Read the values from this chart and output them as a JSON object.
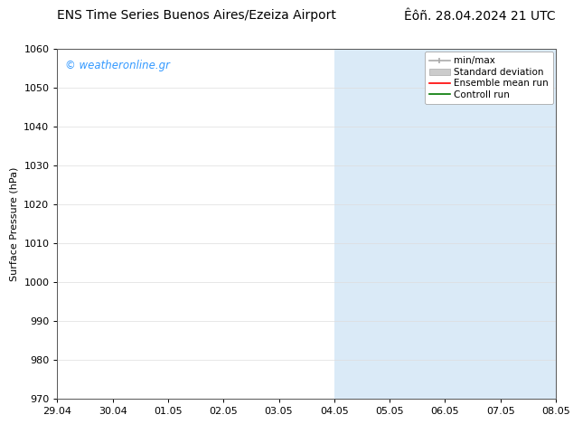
{
  "title_left": "ENS Time Series Buenos Aires/Ezeiza Airport",
  "title_right": "Êôñ. 28.04.2024 21 UTC",
  "ylabel": "Surface Pressure (hPa)",
  "xlim_dates": [
    "29.04",
    "30.04",
    "01.05",
    "02.05",
    "03.05",
    "04.05",
    "05.05",
    "06.05",
    "07.05",
    "08.05"
  ],
  "ylim": [
    970,
    1060
  ],
  "yticks": [
    970,
    980,
    990,
    1000,
    1010,
    1020,
    1030,
    1040,
    1050,
    1060
  ],
  "shaded_bands": [
    {
      "xstart": 5.0,
      "xend": 7.0,
      "color": "#daeaf7"
    },
    {
      "xstart": 7.0,
      "xend": 9.5,
      "color": "#daeaf7"
    }
  ],
  "watermark": "© weatheronline.gr",
  "watermark_color": "#3399ff",
  "legend_entries": [
    {
      "label": "min/max"
    },
    {
      "label": "Standard deviation"
    },
    {
      "label": "Ensemble mean run"
    },
    {
      "label": "Controll run"
    }
  ],
  "background_color": "#ffffff",
  "plot_bg_color": "#ffffff",
  "grid_color": "#cccccc",
  "spine_color": "#555555",
  "tick_label_fontsize": 8,
  "axis_label_fontsize": 8,
  "title_fontsize": 10,
  "legend_fontsize": 7.5
}
